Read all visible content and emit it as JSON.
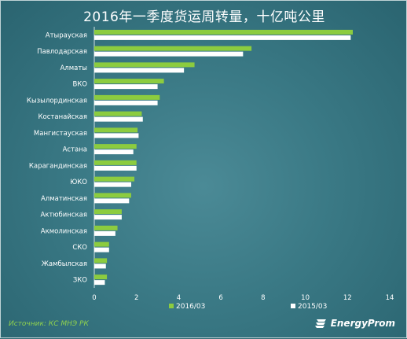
{
  "title": "2016年一季度货运周转量，十亿吨公里",
  "footer": {
    "source": "Источник: КС МНЭ РК",
    "brand": "EnergyProm"
  },
  "colors": {
    "series_2016": "#8ccc3f",
    "series_2015": "#ffffff"
  },
  "chart_data": {
    "type": "bar",
    "orientation": "horizontal",
    "title": "2016年一季度货运周转量，十亿吨公里",
    "categories": [
      "Атырауская",
      "Павлодарская",
      "Алматы",
      "ВКО",
      "Кызылординская",
      "Костанайская",
      "Мангистауская",
      "Астана",
      "Карагандинская",
      "ЮКО",
      "Алматинская",
      "Актюбинская",
      "Акмолинская",
      "СКО",
      "Жамбылская",
      "ЗКО"
    ],
    "series": [
      {
        "name": "2016/03",
        "values": [
          12.25,
          7.45,
          4.75,
          3.3,
          3.1,
          2.25,
          2.05,
          2.0,
          2.0,
          1.9,
          1.75,
          1.3,
          1.1,
          0.7,
          0.6,
          0.6
        ]
      },
      {
        "name": "2015/03",
        "values": [
          12.15,
          7.05,
          4.25,
          3.0,
          3.0,
          2.3,
          2.1,
          1.85,
          2.0,
          1.75,
          1.65,
          1.3,
          1.0,
          0.7,
          0.55,
          0.5
        ]
      }
    ],
    "xlim": [
      0,
      14
    ],
    "xticks": [
      0,
      2,
      4,
      6,
      8,
      10,
      12,
      14
    ],
    "legend_position": "bottom"
  }
}
